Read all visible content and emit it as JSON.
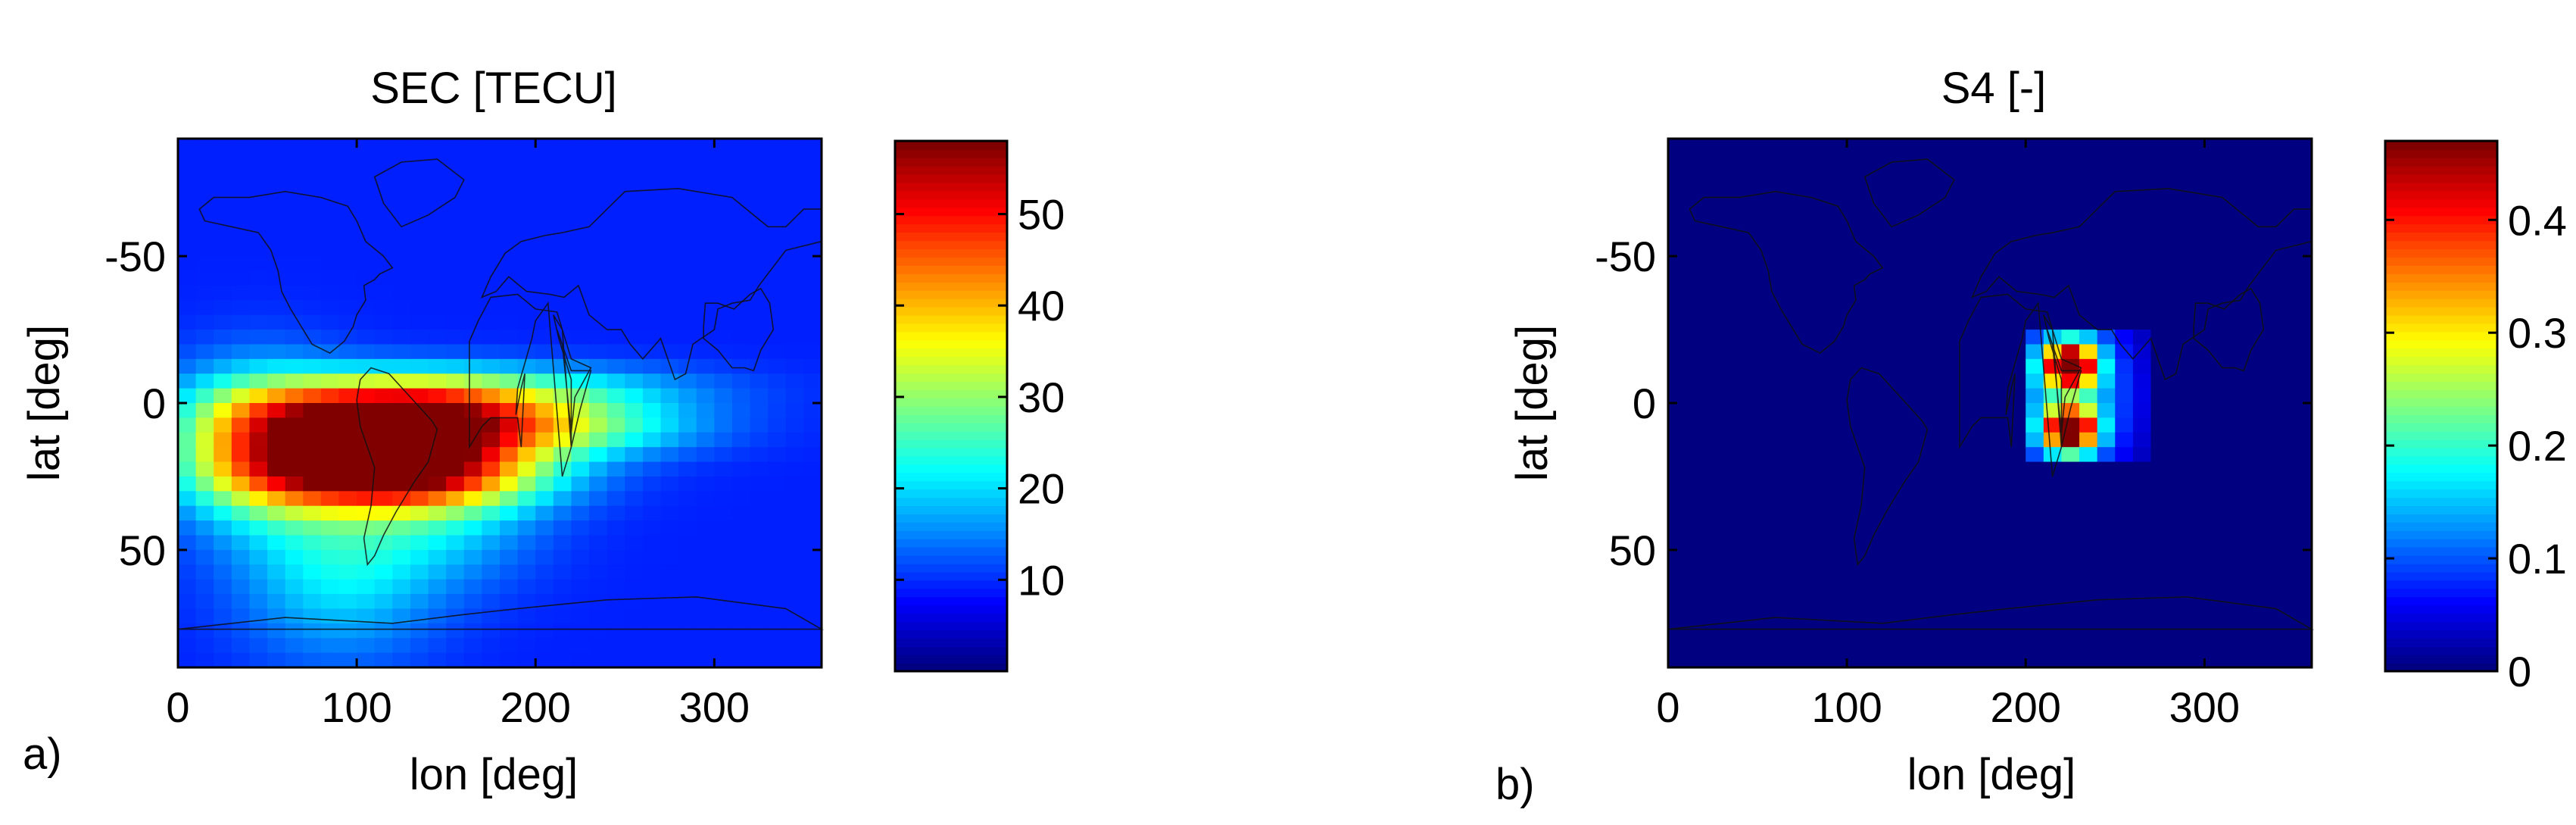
{
  "chart_data": [
    {
      "type": "heatmap",
      "panel_label": "a)",
      "title": "SEC [TECU]",
      "xlabel": "lon [deg]",
      "ylabel": "lat [deg]",
      "xlim": [
        0,
        360
      ],
      "ylim": [
        -90,
        90
      ],
      "y_reversed": true,
      "xticks": [
        0,
        100,
        200,
        300
      ],
      "yticks": [
        -50,
        0,
        50
      ],
      "colorbar": {
        "ticks": [
          10,
          20,
          30,
          40,
          50
        ],
        "range": [
          0,
          58
        ]
      },
      "colormap": "jet",
      "grid": false,
      "background_value": 9,
      "features": [
        {
          "lon": 120,
          "lat": 5,
          "slon": 55,
          "slat": 9,
          "value": 48
        },
        {
          "lon": 120,
          "lat": 23,
          "slon": 55,
          "slat": 9,
          "value": 48
        },
        {
          "lon": 45,
          "lat": 14,
          "slon": 35,
          "slat": 18,
          "value": 22
        },
        {
          "lon": 215,
          "lat": 8,
          "slon": 55,
          "slat": 7,
          "value": 16
        },
        {
          "lon": 200,
          "lat": -5,
          "slon": 70,
          "slat": 6,
          "value": 10
        },
        {
          "lon": 90,
          "lat": 55,
          "slon": 40,
          "slat": 22,
          "value": 12
        },
        {
          "lon": 150,
          "lat": 40,
          "slon": 40,
          "slat": 15,
          "value": 8
        }
      ]
    },
    {
      "type": "heatmap",
      "panel_label": "b)",
      "title": "S4 [-]",
      "xlabel": "lon [deg]",
      "ylabel": "lat [deg]",
      "xlim": [
        0,
        360
      ],
      "ylim": [
        -90,
        90
      ],
      "y_reversed": true,
      "xticks": [
        0,
        100,
        200,
        300
      ],
      "yticks": [
        -50,
        0,
        50
      ],
      "colorbar": {
        "ticks": [
          0,
          0.1,
          0.2,
          0.3,
          0.4
        ],
        "range": [
          0,
          0.47
        ]
      },
      "colormap": "jet",
      "grid": false,
      "background_value": 0,
      "features": [
        {
          "lon": 225,
          "lat": -13,
          "slon": 10,
          "slat": 5,
          "value": 0.45
        },
        {
          "lon": 225,
          "lat": 9,
          "slon": 10,
          "slat": 5,
          "value": 0.45
        },
        {
          "lon": 225,
          "lat": -3,
          "slon": 25,
          "slat": 22,
          "value": 0.17
        }
      ],
      "active_region": {
        "lon": [
          200,
          265
        ],
        "lat": [
          -25,
          18
        ]
      }
    }
  ]
}
